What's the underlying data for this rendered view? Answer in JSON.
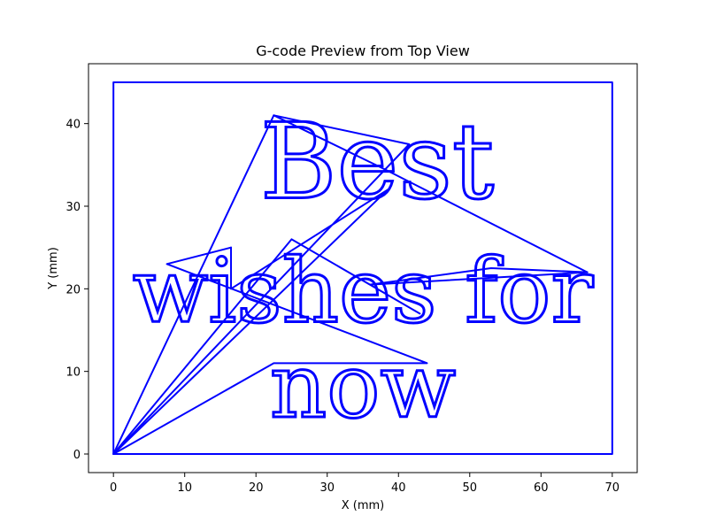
{
  "chart_data": {
    "type": "line",
    "title": "G-code Preview from Top View",
    "xlabel": "X (mm)",
    "ylabel": "Y (mm)",
    "xlim": [
      -3.5,
      73.5
    ],
    "ylim": [
      -2.25,
      47.25
    ],
    "xticks": [
      0,
      10,
      20,
      30,
      40,
      50,
      60,
      70
    ],
    "yticks": [
      0,
      10,
      20,
      30,
      40
    ],
    "grid": false,
    "line_color": "#0000ff",
    "series": [
      {
        "values_note": "",
        "x": [
          0,
          0,
          70,
          70,
          0
        ],
        "y": [
          0,
          45,
          45,
          0,
          0
        ]
      },
      {
        "x": [
          0,
          41.5,
          22.5,
          0,
          38.5,
          16.5,
          16.5
        ],
        "y": [
          0,
          37.5,
          41,
          0,
          32,
          20,
          25
        ]
      },
      {
        "x": [
          16.5,
          7.5,
          44,
          22.5,
          0
        ],
        "y": [
          25,
          23,
          11,
          11,
          0
        ]
      },
      {
        "x": [
          0,
          25,
          43,
          36,
          66.5,
          53,
          36
        ],
        "y": [
          0,
          26,
          17,
          20.5,
          22,
          22.5,
          20.5
        ]
      },
      {
        "x": [
          22.5,
          38,
          66.5
        ],
        "y": [
          41,
          34.5,
          22
        ]
      }
    ],
    "annotations": [
      {
        "text": "Best",
        "x": 37,
        "y": 31
      },
      {
        "text": "wishes for",
        "x": 35,
        "y": 16
      },
      {
        "text": "now",
        "x": 35,
        "y": 4.5
      }
    ]
  }
}
